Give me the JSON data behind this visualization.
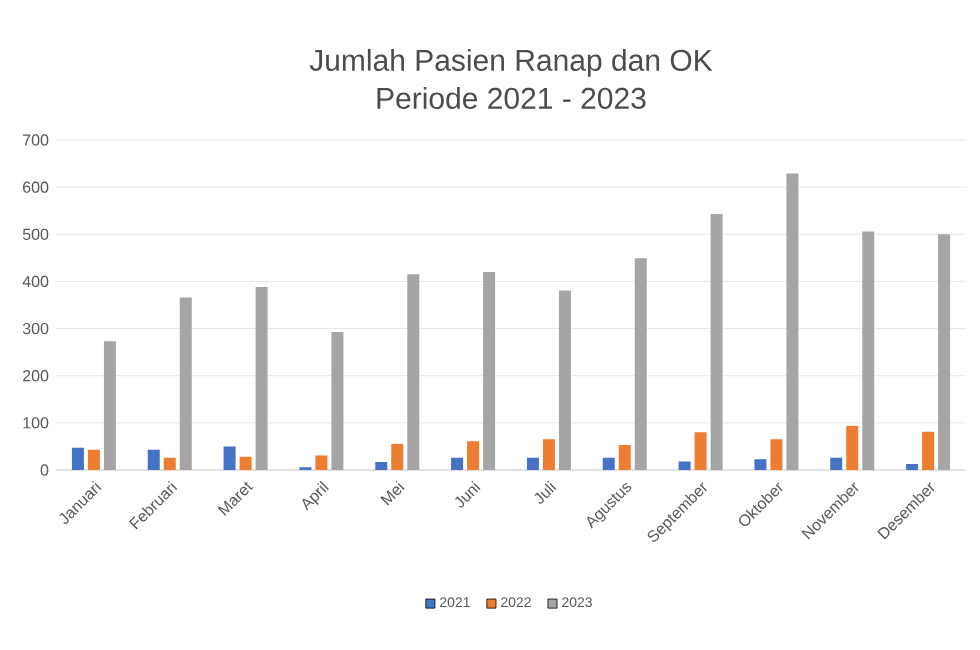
{
  "chart_data": {
    "type": "bar",
    "title": "Jumlah Pasien Ranap dan OK",
    "subtitle": "Periode 2021 - 2023",
    "categories": [
      "Januari",
      "Februari",
      "Maret",
      "April",
      "Mei",
      "Juni",
      "Juli",
      "Agustus",
      "September",
      "Oktober",
      "November",
      "Desember"
    ],
    "series": [
      {
        "name": "2021",
        "color": "#4472c4",
        "values": [
          47,
          43,
          50,
          6,
          17,
          26,
          26,
          26,
          18,
          23,
          26,
          13
        ]
      },
      {
        "name": "2022",
        "color": "#ed7d31",
        "values": [
          43,
          26,
          28,
          31,
          55,
          61,
          65,
          53,
          80,
          65,
          94,
          81
        ]
      },
      {
        "name": "2023",
        "color": "#a5a5a5",
        "values": [
          273,
          366,
          388,
          293,
          415,
          420,
          381,
          449,
          543,
          629,
          506,
          500
        ]
      }
    ],
    "ylim": [
      0,
      700
    ],
    "yticks": [
      0,
      100,
      200,
      300,
      400,
      500,
      600,
      700
    ],
    "grid": "y",
    "legend": "bottom"
  }
}
